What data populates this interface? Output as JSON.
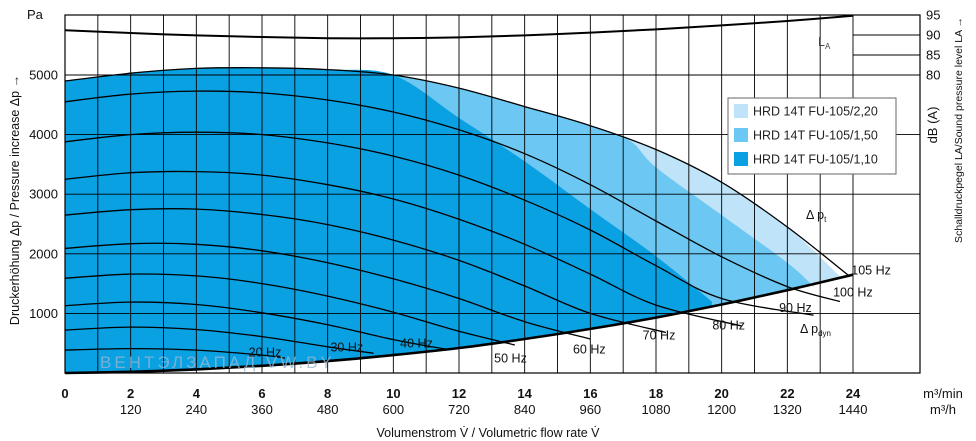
{
  "chart_data": {
    "type": "line",
    "x_axis": {
      "label": "Volumenstrom V̇ / Volumetric flow rate V̇",
      "unit_primary": "m³/min",
      "unit_secondary": "m³/h",
      "range": [
        0,
        24
      ],
      "ticks": [
        "0",
        "2",
        "4",
        "6",
        "8",
        "10",
        "12",
        "14",
        "16",
        "18",
        "20",
        "22",
        "24"
      ],
      "secondary_ticks": [
        "120",
        "240",
        "360",
        "480",
        "600",
        "720",
        "840",
        "960",
        "1080",
        "1200",
        "1320",
        "1440"
      ]
    },
    "y_axis": {
      "label": "Druckerhöhung Δp / Pressure increase Δp →",
      "unit": "Pa",
      "range": [
        0,
        6000
      ],
      "ticks": [
        "1000",
        "2000",
        "3000",
        "4000",
        "5000"
      ]
    },
    "y2_axis": {
      "label": "Schalldruckpegel LA/Sound pressure level LA →",
      "unit": "dB (A)",
      "range": [
        80,
        95
      ],
      "ticks": [
        "80",
        "85",
        "90",
        "95"
      ]
    },
    "grid": true,
    "legend": {
      "placement": "right",
      "entries": [
        {
          "name": "HRD 14T FU-105/2,20",
          "color": "#bfe3f8"
        },
        {
          "name": "HRD 14T FU-105/1,50",
          "color": "#6cc8f2"
        },
        {
          "name": "HRD 14T FU-105/1,10",
          "color": "#0aa1e3"
        }
      ]
    },
    "areas": [
      {
        "name": "HRD 14T FU-105/2,20",
        "x": [
          0,
          2,
          4,
          6,
          8,
          10,
          12,
          14,
          16,
          18,
          20,
          22,
          23.6
        ],
        "y_top": [
          4900,
          5030,
          5110,
          5120,
          5090,
          5000,
          4780,
          4470,
          4150,
          3750,
          3200,
          2450,
          1620
        ]
      },
      {
        "name": "HRD 14T FU-105/1,50",
        "x": [
          0,
          2,
          4,
          6,
          8,
          10,
          12,
          14,
          16,
          17.2,
          18,
          20,
          22,
          22.8
        ],
        "y_top": [
          4900,
          5030,
          5110,
          5120,
          5090,
          5000,
          4780,
          4470,
          4150,
          3900,
          3450,
          2650,
          1850,
          1450
        ]
      },
      {
        "name": "HRD 14T FU-105/1,10",
        "x": [
          0,
          2,
          4,
          6,
          8,
          10,
          12,
          14,
          16,
          18,
          19.7
        ],
        "y_top": [
          4900,
          5030,
          5110,
          5120,
          5090,
          5000,
          4280,
          3550,
          2750,
          1960,
          1200
        ]
      }
    ],
    "pressure_curves": [
      {
        "label": "20 Hz",
        "x": [
          0,
          2,
          4,
          6,
          6.7
        ],
        "y": [
          385,
          410,
          385,
          300,
          250
        ]
      },
      {
        "label": "30 Hz",
        "x": [
          0,
          2,
          4,
          6,
          8,
          9.4
        ],
        "y": [
          720,
          770,
          730,
          610,
          440,
          330
        ]
      },
      {
        "label": "40 Hz",
        "x": [
          0,
          2,
          4,
          6,
          8,
          10,
          11.6
        ],
        "y": [
          1130,
          1190,
          1150,
          1010,
          810,
          560,
          400
        ]
      },
      {
        "label": "50 Hz",
        "x": [
          0,
          2,
          4,
          6,
          8,
          10,
          12,
          13.7
        ],
        "y": [
          1590,
          1660,
          1630,
          1500,
          1290,
          1020,
          700,
          470
        ]
      },
      {
        "label": "60 Hz",
        "x": [
          0,
          2,
          4,
          6,
          8,
          10,
          12,
          14,
          16
        ],
        "y": [
          2090,
          2170,
          2160,
          2050,
          1850,
          1580,
          1250,
          860,
          570
        ]
      },
      {
        "label": "70 Hz",
        "x": [
          0,
          2,
          4,
          6,
          8,
          10,
          12,
          14,
          16,
          18.3
        ],
        "y": [
          2650,
          2740,
          2750,
          2660,
          2490,
          2230,
          1890,
          1460,
          1000,
          680
        ]
      },
      {
        "label": "80 Hz",
        "x": [
          0,
          2,
          4,
          6,
          8,
          10,
          12,
          14,
          16,
          18,
          20.6
        ],
        "y": [
          3250,
          3360,
          3380,
          3320,
          3160,
          2920,
          2580,
          2160,
          1660,
          1140,
          790
        ]
      },
      {
        "label": "90 Hz",
        "x": [
          0,
          2,
          4,
          6,
          8,
          10,
          12,
          14,
          16,
          18,
          20,
          22.8
        ],
        "y": [
          3880,
          4000,
          4040,
          4000,
          3860,
          3640,
          3320,
          2900,
          2400,
          1800,
          1250,
          970
        ]
      },
      {
        "label": "100 Hz",
        "x": [
          0,
          2,
          4,
          6,
          8,
          10,
          12,
          14,
          16,
          18,
          20,
          22,
          23.6
        ],
        "y": [
          4550,
          4680,
          4730,
          4700,
          4580,
          4380,
          4080,
          3680,
          3160,
          2550,
          1950,
          1450,
          1200
        ]
      },
      {
        "label": "105 Hz",
        "x": [
          0,
          2,
          4,
          6,
          8,
          10,
          12,
          14,
          16,
          18,
          20,
          22,
          23.9
        ],
        "y": [
          4900,
          5030,
          5110,
          5120,
          5090,
          5000,
          4780,
          4470,
          4150,
          3750,
          3200,
          2450,
          1620
        ]
      }
    ],
    "curve_labels": {
      "dp_t": "Δ pt",
      "dp_dyn": "Δ pdyn",
      "LA": "LA"
    },
    "dynamic_pressure": {
      "x": [
        0,
        2,
        4,
        6,
        8,
        10,
        12,
        14,
        16,
        18,
        20,
        22,
        24
      ],
      "y": [
        0,
        20,
        60,
        120,
        200,
        300,
        420,
        570,
        740,
        930,
        1150,
        1390,
        1650
      ]
    },
    "sound_level_LA": {
      "x": [
        0,
        2,
        4,
        6,
        8,
        10,
        12,
        14,
        16,
        18,
        20,
        22,
        24
      ],
      "y": [
        91.2,
        90.5,
        89.9,
        89.5,
        89.2,
        89.2,
        89.4,
        89.9,
        90.6,
        91.4,
        92.4,
        93.5,
        94.8
      ]
    },
    "watermark": "ВЕНТЭЛЗАПАД   VW.BY"
  }
}
